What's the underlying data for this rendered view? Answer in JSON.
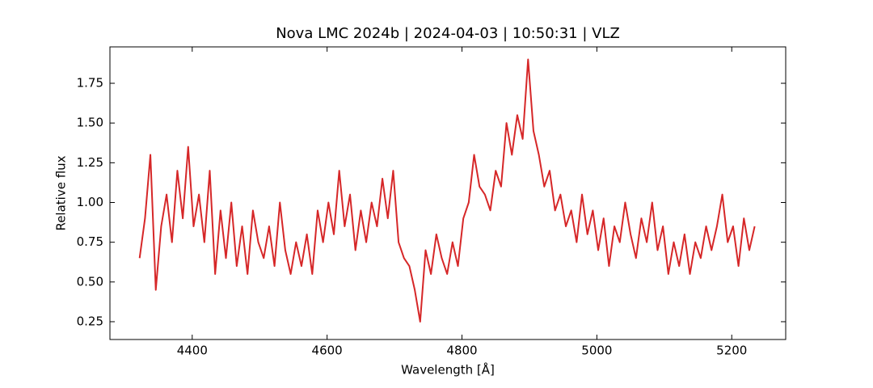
{
  "chart_data": {
    "type": "line",
    "title": "Nova LMC 2024b | 2024-04-03 | 10:50:31 | VLZ",
    "x_label": "Wavelength [Å]",
    "y_label": "Relative flux",
    "color": "#d62728",
    "x": [
      4322,
      4330,
      4338,
      4346,
      4354,
      4362,
      4370,
      4378,
      4386,
      4394,
      4402,
      4410,
      4418,
      4426,
      4434,
      4442,
      4450,
      4458,
      4466,
      4474,
      4482,
      4490,
      4498,
      4506,
      4514,
      4522,
      4530,
      4538,
      4546,
      4554,
      4562,
      4570,
      4578,
      4586,
      4594,
      4602,
      4610,
      4618,
      4626,
      4634,
      4642,
      4650,
      4658,
      4666,
      4674,
      4682,
      4690,
      4698,
      4706,
      4714,
      4722,
      4730,
      4738,
      4746,
      4754,
      4762,
      4770,
      4778,
      4786,
      4794,
      4802,
      4810,
      4818,
      4826,
      4834,
      4842,
      4850,
      4858,
      4866,
      4874,
      4882,
      4890,
      4898,
      4906,
      4914,
      4922,
      4930,
      4938,
      4946,
      4954,
      4962,
      4970,
      4978,
      4986,
      4994,
      5002,
      5010,
      5018,
      5026,
      5034,
      5042,
      5050,
      5058,
      5066,
      5074,
      5082,
      5090,
      5098,
      5106,
      5114,
      5122,
      5130,
      5138,
      5146,
      5154,
      5162,
      5170,
      5178,
      5186,
      5194,
      5202,
      5210,
      5218,
      5226,
      5234
    ],
    "values": [
      0.65,
      0.9,
      1.3,
      0.45,
      0.85,
      1.05,
      0.75,
      1.2,
      0.9,
      1.35,
      0.85,
      1.05,
      0.75,
      1.2,
      0.55,
      0.95,
      0.65,
      1.0,
      0.6,
      0.85,
      0.55,
      0.95,
      0.75,
      0.65,
      0.85,
      0.6,
      1.0,
      0.7,
      0.55,
      0.75,
      0.6,
      0.8,
      0.55,
      0.95,
      0.75,
      1.0,
      0.8,
      1.2,
      0.85,
      1.05,
      0.7,
      0.95,
      0.75,
      1.0,
      0.85,
      1.15,
      0.9,
      1.2,
      0.75,
      0.65,
      0.6,
      0.45,
      0.25,
      0.7,
      0.55,
      0.8,
      0.65,
      0.55,
      0.75,
      0.6,
      0.9,
      1.0,
      1.3,
      1.1,
      1.05,
      0.95,
      1.2,
      1.1,
      1.5,
      1.3,
      1.55,
      1.4,
      1.9,
      1.45,
      1.3,
      1.1,
      1.2,
      0.95,
      1.05,
      0.85,
      0.95,
      0.75,
      1.05,
      0.8,
      0.95,
      0.7,
      0.9,
      0.6,
      0.85,
      0.75,
      1.0,
      0.8,
      0.65,
      0.9,
      0.75,
      1.0,
      0.7,
      0.85,
      0.55,
      0.75,
      0.6,
      0.8,
      0.55,
      0.75,
      0.65,
      0.85,
      0.7,
      0.85,
      1.05,
      0.75,
      0.85,
      0.6,
      0.9,
      0.7,
      0.85
    ],
    "xlim": [
      4278,
      5280
    ],
    "ylim": [
      0.138,
      1.979
    ],
    "xticks": [
      4400,
      4600,
      4800,
      5000,
      5200
    ],
    "yticks": [
      0.25,
      0.5,
      0.75,
      1.0,
      1.25,
      1.5,
      1.75
    ],
    "ytick_labels": [
      "0.25",
      "0.50",
      "0.75",
      "1.00",
      "1.25",
      "1.50",
      "1.75"
    ]
  }
}
